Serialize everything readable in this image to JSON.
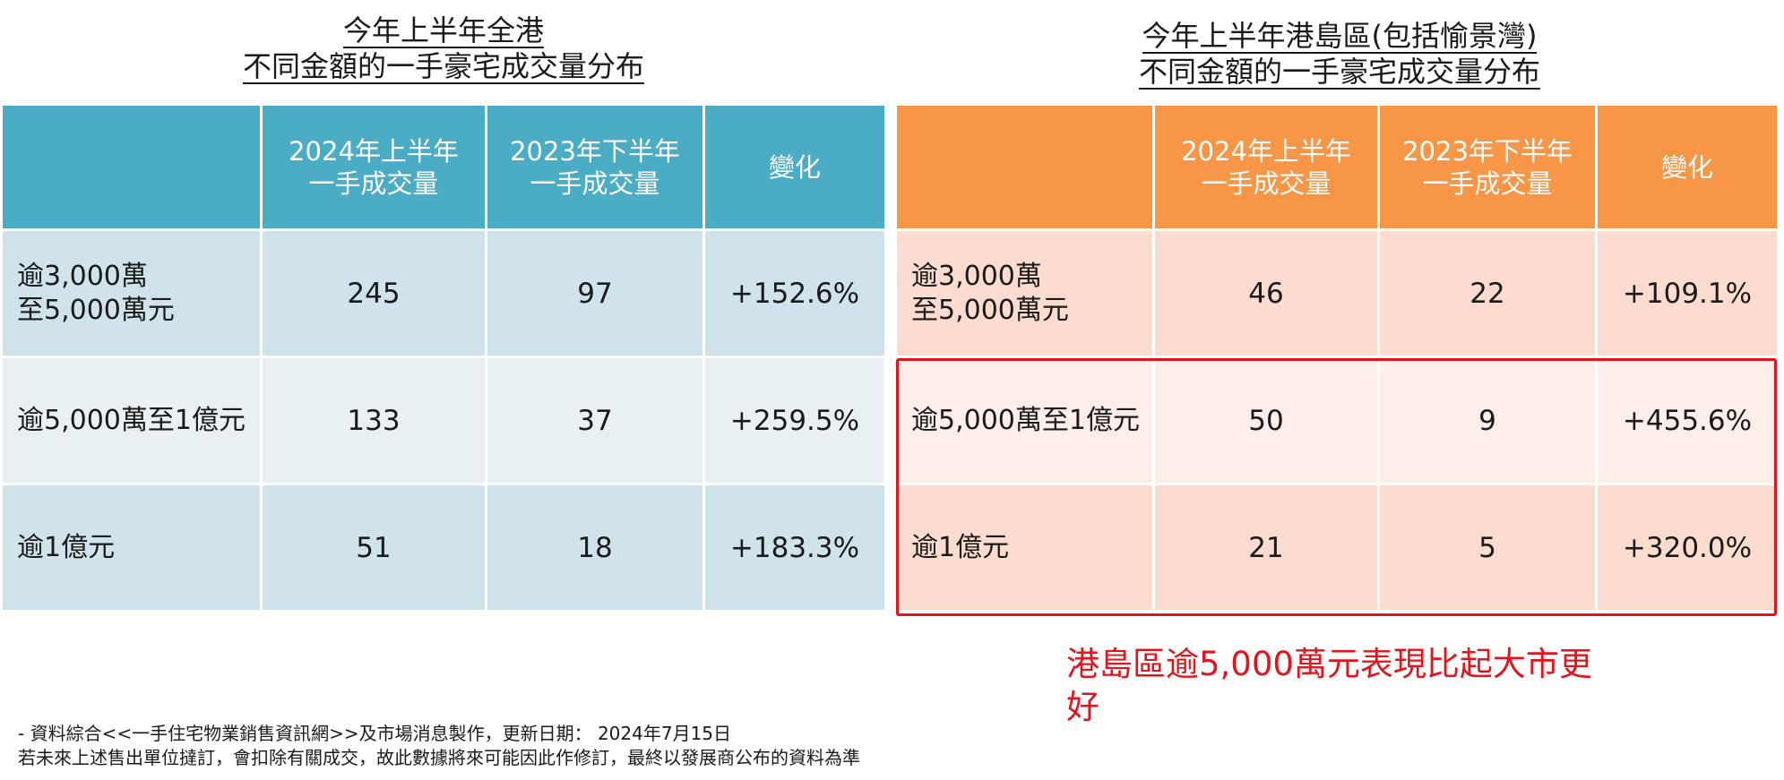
{
  "chart_data": [
    {
      "type": "table",
      "title_lines": [
        "今年上半年全港",
        "不同金額的一手豪宅成交量分布"
      ],
      "header_color": "#4bacc6",
      "columns": [
        {
          "lines": [
            ""
          ]
        },
        {
          "lines": [
            "2024年上半年",
            "一手成交量"
          ]
        },
        {
          "lines": [
            "2023年下半年",
            "一手成交量"
          ]
        },
        {
          "lines": [
            "變化"
          ]
        }
      ],
      "rows": [
        {
          "label_lines": [
            "逾3,000萬",
            "至5,000萬元"
          ],
          "h1_2024": "245",
          "h2_2023": "97",
          "change": "+152.6%"
        },
        {
          "label_lines": [
            "逾5,000萬至1億元"
          ],
          "h1_2024": "133",
          "h2_2023": "37",
          "change": "+259.5%"
        },
        {
          "label_lines": [
            "逾1億元"
          ],
          "h1_2024": "51",
          "h2_2023": "18",
          "change": "+183.3%"
        }
      ]
    },
    {
      "type": "table",
      "title_lines": [
        "今年上半年港島區(包括愉景灣)",
        "不同金額的一手豪宅成交量分布"
      ],
      "header_color": "#f79646",
      "columns": [
        {
          "lines": [
            ""
          ]
        },
        {
          "lines": [
            "2024年上半年",
            "一手成交量"
          ]
        },
        {
          "lines": [
            "2023年下半年",
            "一手成交量"
          ]
        },
        {
          "lines": [
            "變化"
          ]
        }
      ],
      "rows": [
        {
          "label_lines": [
            "逾3,000萬",
            "至5,000萬元"
          ],
          "h1_2024": "46",
          "h2_2023": "22",
          "change": "+109.1%"
        },
        {
          "label_lines": [
            "逾5,000萬至1億元"
          ],
          "h1_2024": "50",
          "h2_2023": "9",
          "change": "+455.6%"
        },
        {
          "label_lines": [
            "逾1億元"
          ],
          "h1_2024": "21",
          "h2_2023": "5",
          "change": "+320.0%"
        }
      ]
    }
  ],
  "callout": "港島區逾5,000萬元表現比起大市更好",
  "callout_color": "#e3141b",
  "footnote": {
    "line1": "- 資料綜合<<一手住宅物業銷售資訊網>>及市場消息製作，更新日期： 2024年7月15日",
    "line2": "若未來上述售出單位撻訂，會扣除有關成交，故此數據將來可能因此作修訂，最終以發展商公布的資料為準"
  }
}
